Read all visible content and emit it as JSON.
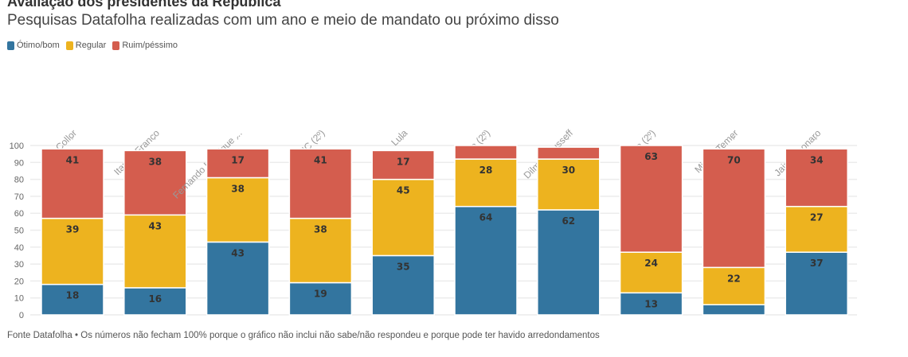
{
  "title": "Avaliação dos presidentes da República",
  "subtitle": "Pesquisas Datafolha realizadas com um ano e meio de mandato ou próximo disso",
  "footer": "Fonte Datafolha • Os números não fecham 100% porque o gráfico não inclui não sabe/não respondeu e porque pode ter havido arredondamentos",
  "colors": {
    "otimo": "#33759f",
    "regular": "#edb31f",
    "ruim": "#d45d4e"
  },
  "chart_data": {
    "type": "bar",
    "stacked": true,
    "categories": [
      "Collor",
      "Itamar Franco",
      "Fernando Henrique ...",
      "FHC (2º)",
      "Lula",
      "Lula (2º)",
      "Dilma Rousseff",
      "Dilma (2º)",
      "Michel Temer",
      "Jair Bolsonaro"
    ],
    "series": [
      {
        "name": "Ótimo/bom",
        "values": [
          18,
          16,
          43,
          19,
          35,
          64,
          62,
          13,
          6,
          37
        ],
        "labels": [
          "18",
          "16",
          "43",
          "19",
          "35",
          "64",
          "62",
          "13",
          "",
          "37"
        ]
      },
      {
        "name": "Regular",
        "values": [
          39,
          43,
          38,
          38,
          45,
          28,
          30,
          24,
          22,
          27
        ],
        "labels": [
          "39",
          "43",
          "38",
          "38",
          "45",
          "28",
          "30",
          "24",
          "22",
          "27"
        ]
      },
      {
        "name": "Ruim/péssimo",
        "values": [
          41,
          38,
          17,
          41,
          17,
          8,
          7,
          63,
          70,
          34
        ],
        "labels": [
          "41",
          "38",
          "17",
          "41",
          "17",
          "",
          "",
          "63",
          "70",
          "34"
        ]
      }
    ],
    "ylim": [
      0,
      100
    ],
    "yticks": [
      "0",
      "10",
      "20",
      "30",
      "40",
      "50",
      "60",
      "70",
      "80",
      "90",
      "100"
    ],
    "grid": true,
    "legend": "top-left"
  }
}
